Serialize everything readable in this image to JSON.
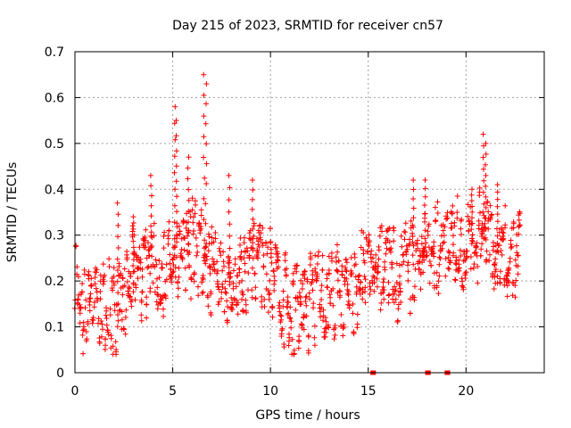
{
  "chart_data": {
    "type": "scatter",
    "title": "Day 215 of 2023, SRMTID for receiver cn57",
    "xlabel": "GPS time / hours",
    "ylabel": "SRMTID / TECUs",
    "xlim": [
      0,
      24
    ],
    "ylim": [
      0,
      0.7
    ],
    "xticks": [
      0,
      5,
      10,
      15,
      20
    ],
    "xtick_labels": [
      "0",
      "5",
      "10",
      "15",
      "20"
    ],
    "yticks": [
      0,
      0.1,
      0.2,
      0.3,
      0.4,
      0.5,
      0.6,
      0.7
    ],
    "ytick_labels": [
      "0",
      "0.1",
      "0.2",
      "0.3",
      "0.4",
      "0.5",
      "0.6",
      "0.7"
    ],
    "grid": true,
    "marker": "+",
    "color": "#ff0000",
    "series": [
      {
        "name": "cn57",
        "trend": [
          {
            "x": 0.0,
            "y": 0.2
          },
          {
            "x": 0.5,
            "y": 0.15
          },
          {
            "x": 1.0,
            "y": 0.13
          },
          {
            "x": 1.5,
            "y": 0.14
          },
          {
            "x": 2.0,
            "y": 0.13
          },
          {
            "x": 2.5,
            "y": 0.18
          },
          {
            "x": 3.0,
            "y": 0.22
          },
          {
            "x": 3.5,
            "y": 0.2
          },
          {
            "x": 4.0,
            "y": 0.24
          },
          {
            "x": 4.5,
            "y": 0.22
          },
          {
            "x": 5.0,
            "y": 0.26
          },
          {
            "x": 5.5,
            "y": 0.24
          },
          {
            "x": 6.0,
            "y": 0.27
          },
          {
            "x": 6.5,
            "y": 0.25
          },
          {
            "x": 7.0,
            "y": 0.22
          },
          {
            "x": 7.5,
            "y": 0.2
          },
          {
            "x": 8.0,
            "y": 0.19
          },
          {
            "x": 8.5,
            "y": 0.21
          },
          {
            "x": 9.0,
            "y": 0.23
          },
          {
            "x": 9.5,
            "y": 0.22
          },
          {
            "x": 10.0,
            "y": 0.24
          },
          {
            "x": 10.5,
            "y": 0.16
          },
          {
            "x": 11.0,
            "y": 0.14
          },
          {
            "x": 11.5,
            "y": 0.13
          },
          {
            "x": 12.0,
            "y": 0.15
          },
          {
            "x": 12.5,
            "y": 0.17
          },
          {
            "x": 13.0,
            "y": 0.16
          },
          {
            "x": 13.5,
            "y": 0.18
          },
          {
            "x": 14.0,
            "y": 0.19
          },
          {
            "x": 14.5,
            "y": 0.2
          },
          {
            "x": 15.0,
            "y": 0.21
          },
          {
            "x": 15.5,
            "y": 0.22
          },
          {
            "x": 16.0,
            "y": 0.24
          },
          {
            "x": 16.5,
            "y": 0.21
          },
          {
            "x": 17.0,
            "y": 0.23
          },
          {
            "x": 17.5,
            "y": 0.24
          },
          {
            "x": 18.0,
            "y": 0.26
          },
          {
            "x": 18.5,
            "y": 0.27
          },
          {
            "x": 19.0,
            "y": 0.29
          },
          {
            "x": 19.5,
            "y": 0.28
          },
          {
            "x": 20.0,
            "y": 0.27
          },
          {
            "x": 20.5,
            "y": 0.3
          },
          {
            "x": 21.0,
            "y": 0.29
          },
          {
            "x": 21.5,
            "y": 0.27
          },
          {
            "x": 22.0,
            "y": 0.25
          },
          {
            "x": 22.5,
            "y": 0.26
          },
          {
            "x": 22.8,
            "y": 0.25
          }
        ],
        "spread": 0.09,
        "peaks": [
          {
            "x": 2.2,
            "y": 0.37
          },
          {
            "x": 3.0,
            "y": 0.34
          },
          {
            "x": 3.9,
            "y": 0.43
          },
          {
            "x": 5.1,
            "y": 0.58
          },
          {
            "x": 5.2,
            "y": 0.55
          },
          {
            "x": 5.8,
            "y": 0.47
          },
          {
            "x": 6.6,
            "y": 0.65
          },
          {
            "x": 6.7,
            "y": 0.63
          },
          {
            "x": 7.9,
            "y": 0.43
          },
          {
            "x": 9.1,
            "y": 0.42
          },
          {
            "x": 17.3,
            "y": 0.42
          },
          {
            "x": 17.9,
            "y": 0.42
          },
          {
            "x": 20.3,
            "y": 0.4
          },
          {
            "x": 20.9,
            "y": 0.52
          },
          {
            "x": 21.0,
            "y": 0.5
          },
          {
            "x": 21.6,
            "y": 0.41
          }
        ],
        "zero_points": [
          15.2,
          15.3,
          18.0,
          18.05,
          18.1,
          19.0,
          19.1
        ]
      }
    ]
  }
}
